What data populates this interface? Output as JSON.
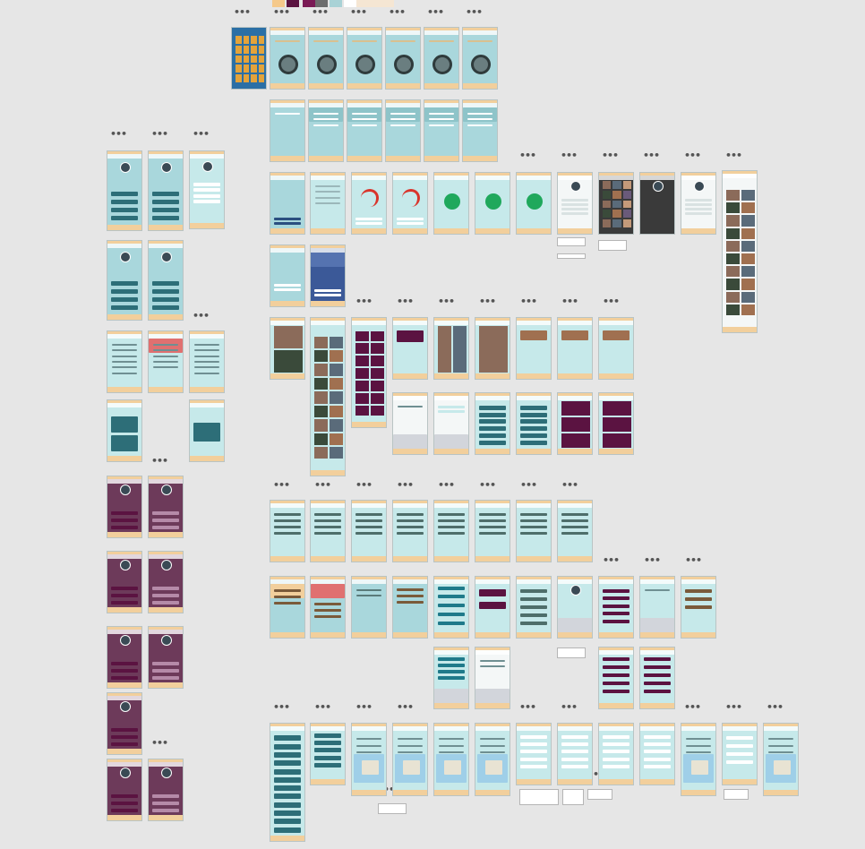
{
  "board": {
    "background": "#e6e6e6",
    "more_glyph": "•••"
  },
  "palette": {
    "colors": [
      "#f5c98b",
      "#5b1341",
      "#7a1a55",
      "#6d6d6d",
      "#a9d2d6",
      "#ffffff",
      "#f5e6d3"
    ]
  },
  "colors": {
    "screen_teal": "#a9d7dc",
    "screen_light": "#c6e9ea",
    "screen_plum": "#6d3a5a",
    "plum_dark": "#5b1341",
    "panel_dark": "#2d6e78",
    "header_peach": "#f2cf9c",
    "success_green": "#1fa85c",
    "progress_red": "#d9342b",
    "facebook_blue": "#3b5998",
    "keyboard_gray": "#d2d5db",
    "map_blue": "#9fcfe8",
    "map_land": "#e8e3d3",
    "photo_dark": "#3a3a3a",
    "home_screen": "#2b6fa5"
  }
}
